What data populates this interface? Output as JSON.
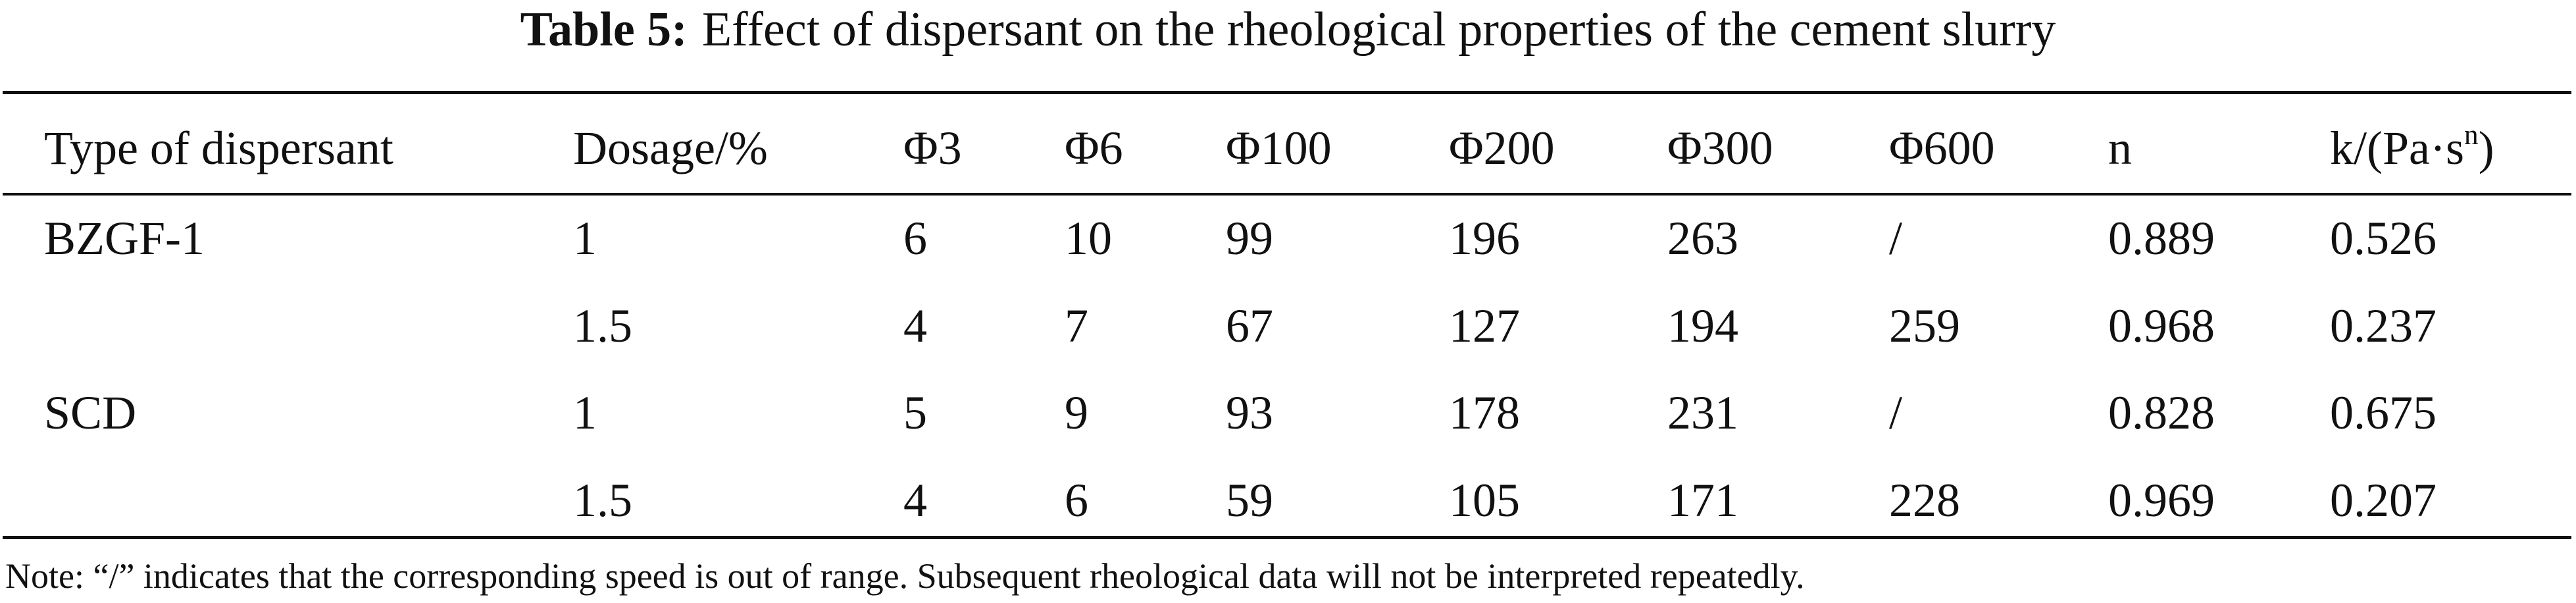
{
  "title": {
    "label": "Table 5:",
    "text": "Effect of dispersant on the rheological properties of the cement slurry"
  },
  "table": {
    "header": [
      "Type of dispersant",
      "Dosage/%",
      "Φ3",
      "Φ6",
      "Φ100",
      "Φ200",
      "Φ300",
      "Φ600",
      "n",
      {
        "text": "k/(Pa·s",
        "sup": "n",
        "tail": ")"
      }
    ],
    "groups": [
      {
        "type": "BZGF-1",
        "rows": [
          [
            "1",
            "6",
            "10",
            "99",
            "196",
            "263",
            "/",
            "0.889",
            "0.526"
          ],
          [
            "1.5",
            "4",
            "7",
            "67",
            "127",
            "194",
            "259",
            "0.968",
            "0.237"
          ]
        ]
      },
      {
        "type": "SCD",
        "rows": [
          [
            "1",
            "5",
            "9",
            "93",
            "178",
            "231",
            "/",
            "0.828",
            "0.675"
          ],
          [
            "1.5",
            "4",
            "6",
            "59",
            "105",
            "171",
            "228",
            "0.969",
            "0.207"
          ]
        ]
      }
    ]
  },
  "note": "Note: “/” indicates that the corresponding speed is out of range. Subsequent rheological data will not be interpreted repeatedly."
}
